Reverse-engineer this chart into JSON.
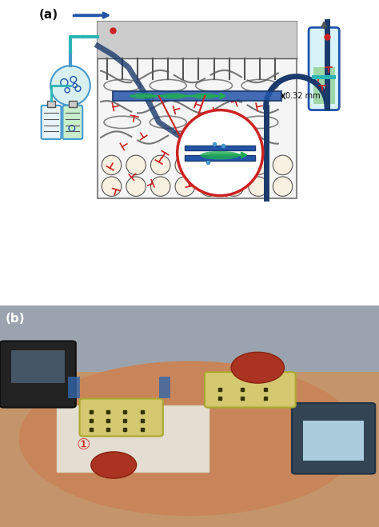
{
  "fig_width": 4.74,
  "fig_height": 6.59,
  "dpi": 100,
  "panel_a_label": "(a)",
  "panel_b_label": "(b)",
  "measurement_label": "0.32 mm",
  "bg_color": "#ffffff",
  "diagram_bg": "#f0f0f0",
  "skin_color": "#d4a574",
  "blue_dark": "#1a3a6b",
  "blue_mid": "#2255aa",
  "blue_light": "#4499cc",
  "teal": "#2ab5b5",
  "teal_light": "#7dd4d4",
  "green": "#22aa55",
  "green_light": "#88cc88",
  "red": "#cc2222",
  "gray_dark": "#555555",
  "gray_mid": "#888888",
  "gray_light": "#cccccc",
  "black": "#111111",
  "white": "#ffffff",
  "arrow_blue": "#3366cc"
}
